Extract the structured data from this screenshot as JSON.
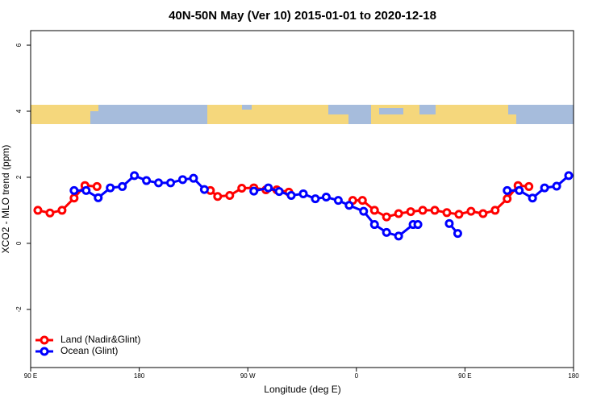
{
  "chart_data": {
    "type": "line",
    "title": "40N-50N May (Ver 10)   2015-01-01 to 2020-12-18",
    "xlabel": "Longitude (deg E)",
    "ylabel": "XCO2 - MLO trend (ppm)",
    "xlim": [
      90,
      540
    ],
    "ylim": [
      -3.76,
      6.44
    ],
    "xticks": [
      {
        "value": 90,
        "label": "90 E"
      },
      180,
      {
        "value": 270,
        "label": "90 W"
      },
      {
        "value": 360,
        "label": "0"
      },
      {
        "value": 450,
        "label": "90 E"
      },
      {
        "value": 540,
        "label": "180"
      }
    ],
    "yticks": [
      6,
      4,
      2,
      0,
      -2
    ],
    "legend": "bottom-left",
    "series": [
      {
        "name": "Land (Nadir&Glint)",
        "color": "#ff0000",
        "x": [
          96,
          106,
          116,
          126,
          135,
          145,
          190,
          239,
          245,
          255,
          265,
          275,
          285,
          294,
          304,
          330,
          357,
          365,
          375,
          385,
          395,
          405,
          415,
          425,
          435,
          445,
          455,
          465,
          475,
          485,
          494,
          503
        ],
        "values": [
          1.0,
          0.92,
          1.0,
          1.37,
          1.75,
          1.72,
          null,
          1.6,
          1.42,
          1.45,
          1.67,
          1.68,
          1.62,
          1.62,
          1.55,
          null,
          1.3,
          1.3,
          1.0,
          0.8,
          0.9,
          0.96,
          1.0,
          1.0,
          0.93,
          0.88,
          0.97,
          0.9,
          1.0,
          1.35,
          1.75,
          1.72
        ]
      },
      {
        "name": "Ocean (Glint)",
        "color": "#0000ff",
        "x": [
          126,
          136,
          146,
          156,
          166,
          176,
          186,
          196,
          206,
          216,
          225,
          234,
          255,
          275,
          287,
          296,
          306,
          316,
          326,
          335,
          345,
          354,
          366,
          375,
          385,
          395,
          407,
          411,
          425,
          437,
          444,
          465,
          485,
          495,
          506,
          516,
          526,
          536
        ],
        "values": [
          1.6,
          1.6,
          1.38,
          1.68,
          1.72,
          2.05,
          1.9,
          1.83,
          1.83,
          1.93,
          1.97,
          1.63,
          null,
          1.58,
          1.68,
          1.57,
          1.45,
          1.5,
          1.35,
          1.4,
          1.3,
          1.15,
          0.97,
          0.57,
          0.33,
          0.22,
          0.57,
          0.57,
          null,
          0.6,
          0.3,
          null,
          1.6,
          1.6,
          1.37,
          1.68,
          1.73,
          2.05
        ]
      }
    ]
  }
}
